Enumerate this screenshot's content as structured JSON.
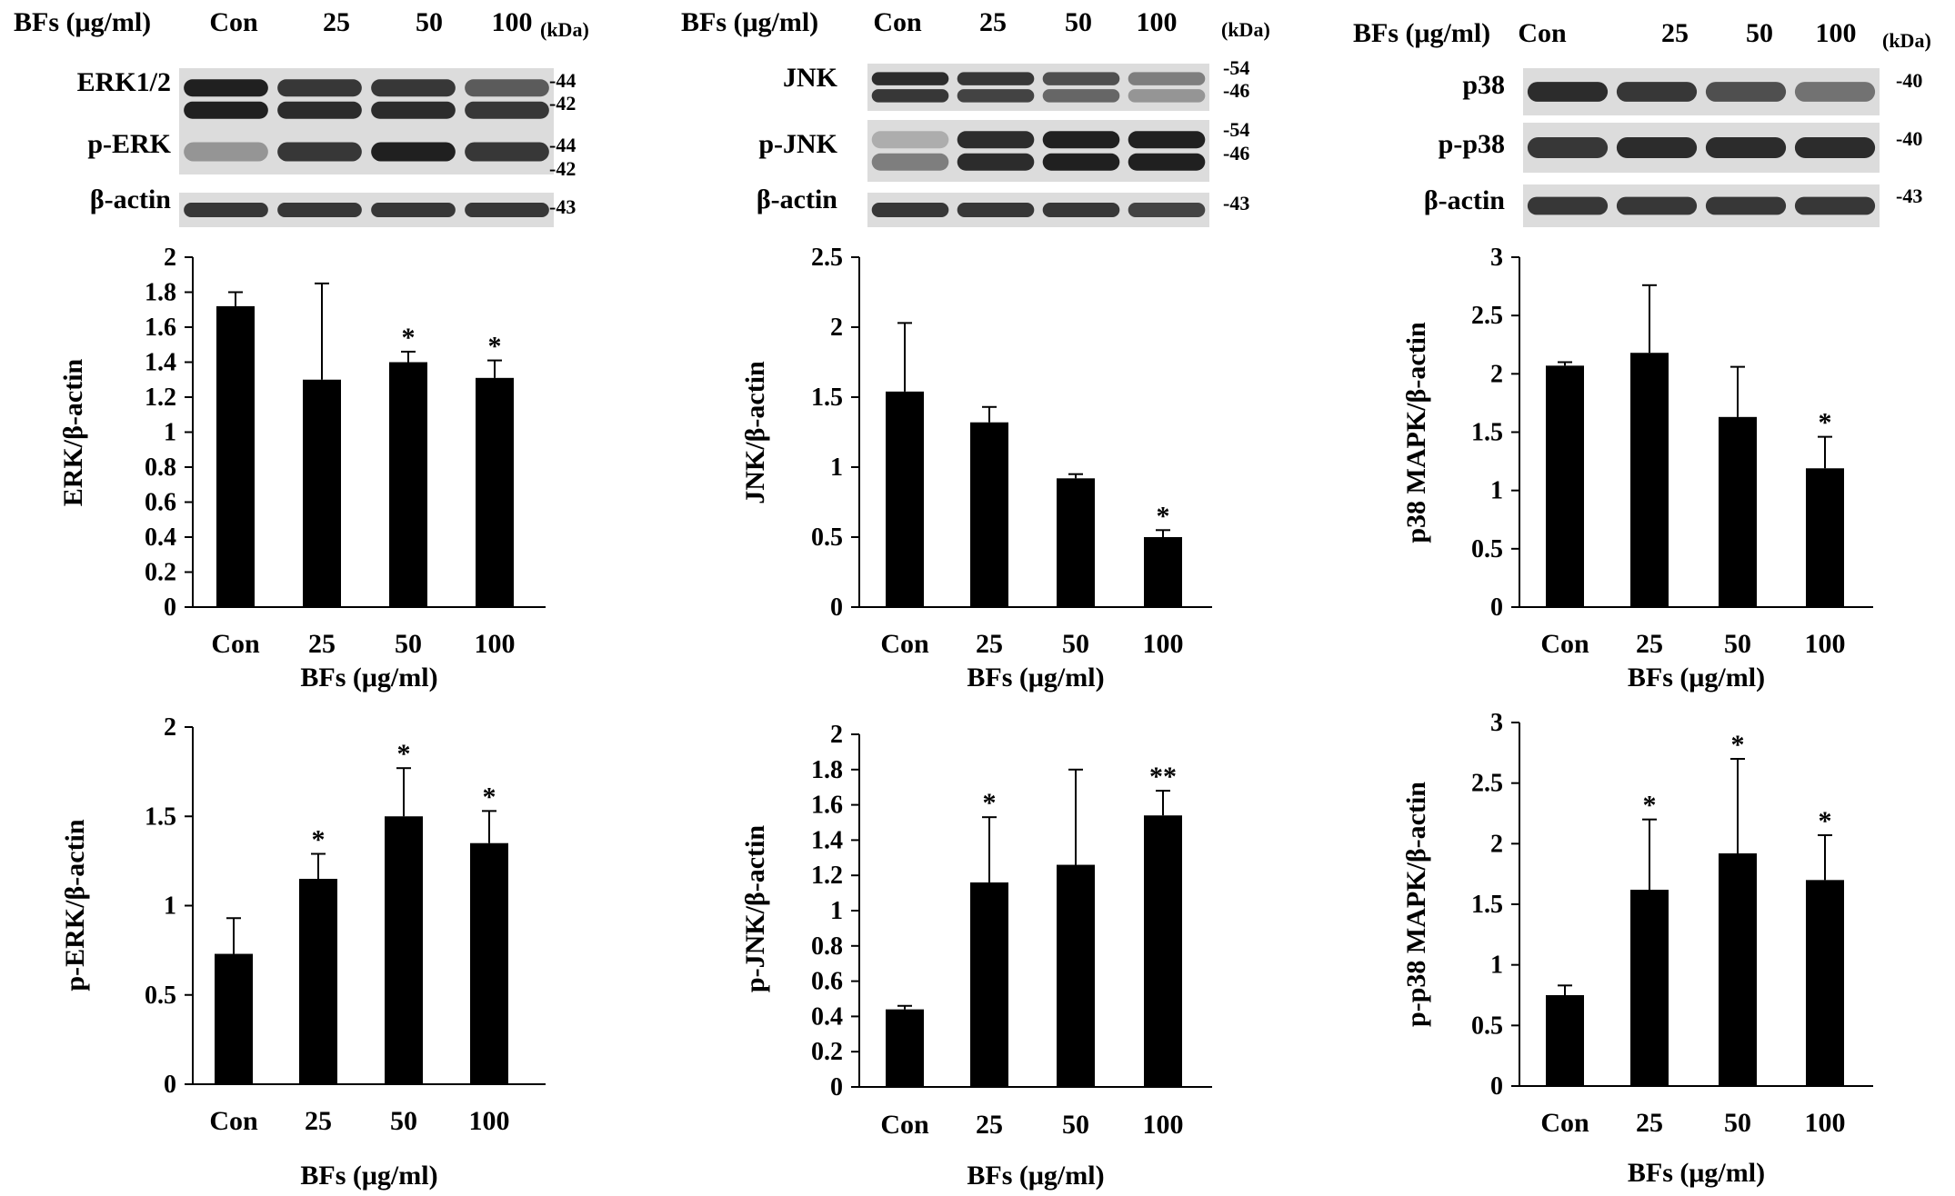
{
  "figure": {
    "columns": [
      {
        "blot": {
          "condition_label": "BFs (μg/ml)",
          "lanes": [
            "Con",
            "25",
            "50",
            "100"
          ],
          "kda_label": "(kDa)",
          "rows": [
            {
              "label": "ERK1/2",
              "markers": [
                "-44",
                "-42"
              ],
              "bands": 2,
              "top_intensity": [
                0.95,
                0.85,
                0.85,
                0.7
              ],
              "bottom_intensity": [
                0.95,
                0.9,
                0.9,
                0.85
              ]
            },
            {
              "label": "p-ERK",
              "markers": [
                "-44",
                "-42"
              ],
              "bands": 1,
              "top_intensity": [
                0.45,
                0.85,
                0.95,
                0.85
              ],
              "bottom_intensity": []
            },
            {
              "label": "β-actin",
              "markers": [
                "-43"
              ],
              "bands": 1,
              "top_intensity": [
                0.85,
                0.85,
                0.85,
                0.85
              ],
              "bottom_intensity": []
            }
          ]
        }
      },
      {
        "blot": {
          "condition_label": "BFs (μg/ml)",
          "lanes": [
            "Con",
            "25",
            "50",
            "100"
          ],
          "kda_label": "(kDa)",
          "rows": [
            {
              "label": "JNK",
              "markers": [
                "-54",
                "-46"
              ],
              "bands": 2,
              "top_intensity": [
                0.9,
                0.85,
                0.75,
                0.55
              ],
              "bottom_intensity": [
                0.85,
                0.8,
                0.65,
                0.45
              ]
            },
            {
              "label": "p-JNK",
              "markers": [
                "-54",
                "-46"
              ],
              "bands": 2,
              "top_intensity": [
                0.35,
                0.9,
                0.95,
                0.95
              ],
              "bottom_intensity": [
                0.55,
                0.9,
                0.95,
                0.95
              ]
            },
            {
              "label": "β-actin",
              "markers": [
                "-43"
              ],
              "bands": 1,
              "top_intensity": [
                0.85,
                0.85,
                0.85,
                0.8
              ],
              "bottom_intensity": []
            }
          ]
        }
      },
      {
        "blot": {
          "condition_label": "BFs (μg/ml)",
          "lanes": [
            "Con",
            "25",
            "50",
            "100"
          ],
          "kda_label": "(kDa)",
          "rows": [
            {
              "label": "p38",
              "markers": [
                "-40"
              ],
              "bands": 1,
              "top_intensity": [
                0.9,
                0.85,
                0.75,
                0.6
              ],
              "bottom_intensity": []
            },
            {
              "label": "p-p38",
              "markers": [
                "-40"
              ],
              "bands": 1,
              "top_intensity": [
                0.85,
                0.9,
                0.9,
                0.9
              ],
              "bottom_intensity": []
            },
            {
              "label": "β-actin",
              "markers": [
                "-43"
              ],
              "bands": 1,
              "top_intensity": [
                0.85,
                0.85,
                0.85,
                0.85
              ],
              "bottom_intensity": []
            }
          ]
        }
      }
    ]
  },
  "chart_data": [
    {
      "type": "bar",
      "ylabel": "ERK/β-actin",
      "xlabel": "BFs (μg/ml)",
      "categories": [
        "Con",
        "25",
        "50",
        "100"
      ],
      "values": [
        1.72,
        1.3,
        1.4,
        1.31
      ],
      "errors": [
        0.08,
        0.55,
        0.06,
        0.1
      ],
      "significance": [
        "",
        "",
        "*",
        "*"
      ],
      "ylim": [
        0,
        2
      ],
      "yticks": [
        "0",
        "0.2",
        "0.4",
        "0.6",
        "0.8",
        "1",
        "1.2",
        "1.4",
        "1.6",
        "1.8",
        "2"
      ]
    },
    {
      "type": "bar",
      "ylabel": "JNK/β-actin",
      "xlabel": "BFs (μg/ml)",
      "categories": [
        "Con",
        "25",
        "50",
        "100"
      ],
      "values": [
        1.54,
        1.32,
        0.92,
        0.5
      ],
      "errors": [
        0.49,
        0.11,
        0.03,
        0.05
      ],
      "significance": [
        "",
        "",
        "",
        "*"
      ],
      "ylim": [
        0,
        2.5
      ],
      "yticks": [
        "0",
        "0.5",
        "1",
        "1.5",
        "2",
        "2.5"
      ]
    },
    {
      "type": "bar",
      "ylabel": "p38 MAPK/β-actin",
      "xlabel": "BFs (μg/ml)",
      "categories": [
        "Con",
        "25",
        "50",
        "100"
      ],
      "values": [
        2.07,
        2.18,
        1.63,
        1.19
      ],
      "errors": [
        0.03,
        0.58,
        0.43,
        0.27
      ],
      "significance": [
        "",
        "",
        "",
        "*"
      ],
      "ylim": [
        0,
        3
      ],
      "yticks": [
        "0",
        "0.5",
        "1",
        "1.5",
        "2",
        "2.5",
        "3"
      ]
    },
    {
      "type": "bar",
      "ylabel": "p-ERK/β-actin",
      "xlabel": "BFs (μg/ml)",
      "categories": [
        "Con",
        "25",
        "50",
        "100"
      ],
      "values": [
        0.73,
        1.15,
        1.5,
        1.35
      ],
      "errors": [
        0.2,
        0.14,
        0.27,
        0.18
      ],
      "significance": [
        "",
        "*",
        "*",
        "*"
      ],
      "ylim": [
        0,
        2
      ],
      "yticks": [
        "0",
        "0.5",
        "1",
        "1.5",
        "2"
      ]
    },
    {
      "type": "bar",
      "ylabel": "p-JNK/β-actin",
      "xlabel": "BFs (μg/ml)",
      "categories": [
        "Con",
        "25",
        "50",
        "100"
      ],
      "values": [
        0.44,
        1.16,
        1.26,
        1.54
      ],
      "errors": [
        0.02,
        0.37,
        0.54,
        0.14
      ],
      "significance": [
        "",
        "*",
        "",
        "**"
      ],
      "ylim": [
        0,
        2
      ],
      "yticks": [
        "0",
        "0.2",
        "0.4",
        "0.6",
        "0.8",
        "1",
        "1.2",
        "1.4",
        "1.6",
        "1.8",
        "2"
      ]
    },
    {
      "type": "bar",
      "ylabel": "p-p38 MAPK/β-actin",
      "xlabel": "BFs (μg/ml)",
      "categories": [
        "Con",
        "25",
        "50",
        "100"
      ],
      "values": [
        0.75,
        1.62,
        1.92,
        1.7
      ],
      "errors": [
        0.08,
        0.58,
        0.78,
        0.37
      ],
      "significance": [
        "",
        "*",
        "*",
        "*"
      ],
      "ylim": [
        0,
        3
      ],
      "yticks": [
        "0",
        "0.5",
        "1",
        "1.5",
        "2",
        "2.5",
        "3"
      ]
    }
  ]
}
